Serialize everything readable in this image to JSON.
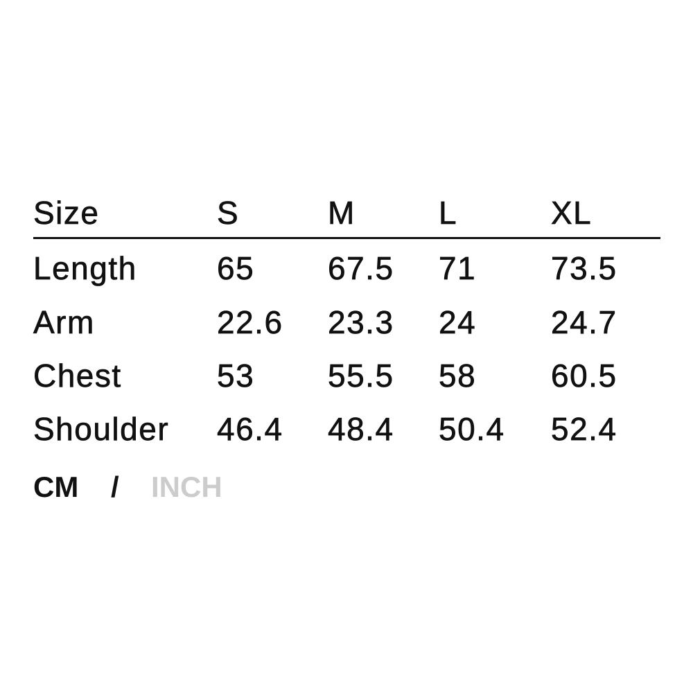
{
  "table": {
    "headers": [
      "Size",
      "S",
      "M",
      "L",
      "XL"
    ],
    "rows": [
      [
        "Length",
        "65",
        "67.5",
        "71",
        "73.5"
      ],
      [
        "Arm",
        "22.6",
        "23.3",
        "24",
        "24.7"
      ],
      [
        "Chest",
        "53",
        "55.5",
        "58",
        "60.5"
      ],
      [
        "Shoulder",
        "46.4",
        "48.4",
        "50.4",
        "52.4"
      ]
    ]
  },
  "units": {
    "active": "CM",
    "separator": "/",
    "inactive": "INCH",
    "active_color": "#111111",
    "inactive_color": "#cccccc"
  }
}
